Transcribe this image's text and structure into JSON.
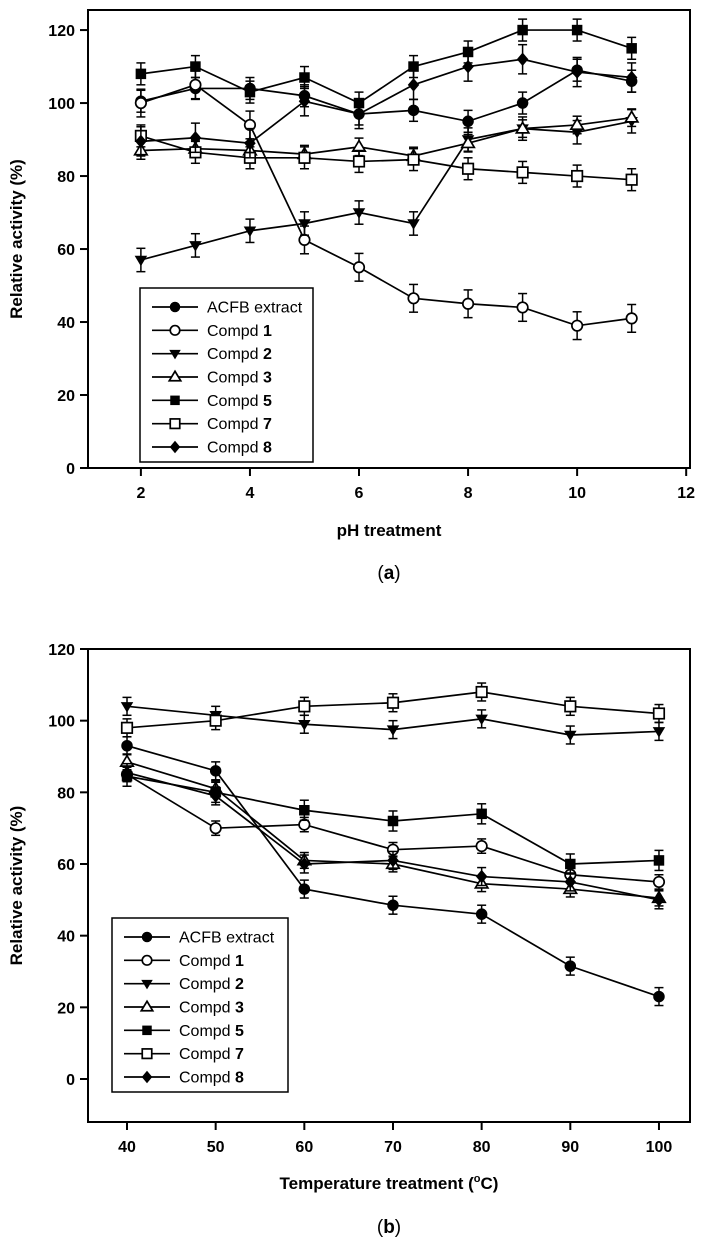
{
  "figure": {
    "background": "#ffffff",
    "ink": "#000000",
    "description_a": "(a)",
    "description_b": "(b)"
  },
  "chart_data": [
    {
      "id": "a",
      "type": "line",
      "title": "",
      "xlabel": "pH treatment",
      "xlabel_parts": [
        {
          "t": "pH treatment",
          "b": true
        }
      ],
      "ylabel": "Relative activity (%)",
      "ylabel_parts": [
        {
          "t": "Relative activity (%)",
          "b": true
        }
      ],
      "panel_label": "(a)",
      "panel_parts": [
        {
          "t": "("
        },
        {
          "t": "a",
          "b": true
        },
        {
          "t": ")"
        }
      ],
      "x": [
        2,
        3,
        4,
        5,
        6,
        7,
        8,
        9,
        10,
        11
      ],
      "xticks": [
        2,
        4,
        6,
        8,
        10,
        12
      ],
      "yticks": [
        0,
        20,
        40,
        60,
        80,
        100,
        120
      ],
      "xlim": [
        1.03,
        12.07
      ],
      "ylim": [
        0,
        125.5
      ],
      "grid": false,
      "legend_position": "lower-left",
      "series": [
        {
          "name": "ACFB extract",
          "label_parts": [
            {
              "t": "ACFB extract"
            }
          ],
          "marker": "filled-circle",
          "err": 3,
          "values": [
            100.5,
            104,
            104,
            102,
            97,
            98,
            95,
            100,
            109,
            106
          ]
        },
        {
          "name": "Compd 1",
          "label_parts": [
            {
              "t": "Compd "
            },
            {
              "t": "1",
              "b": true
            }
          ],
          "marker": "open-circle",
          "err": 3.8,
          "values": [
            100,
            105,
            94,
            62.5,
            55,
            46.5,
            45,
            44,
            39,
            41
          ]
        },
        {
          "name": "Compd 2",
          "label_parts": [
            {
              "t": "Compd "
            },
            {
              "t": "2",
              "b": true
            }
          ],
          "marker": "filled-triangle-down",
          "err": 3.2,
          "values": [
            57,
            61,
            65,
            67,
            70,
            67,
            90,
            93,
            92,
            95
          ]
        },
        {
          "name": "Compd 3",
          "label_parts": [
            {
              "t": "Compd "
            },
            {
              "t": "3",
              "b": true
            }
          ],
          "marker": "open-triangle-up",
          "err": 2.4,
          "values": [
            87,
            87.5,
            87,
            86,
            88,
            85.5,
            89,
            93,
            94,
            96
          ]
        },
        {
          "name": "Compd 5",
          "label_parts": [
            {
              "t": "Compd "
            },
            {
              "t": "5",
              "b": true
            }
          ],
          "marker": "filled-square",
          "err": 3,
          "values": [
            108,
            110,
            103,
            107,
            100,
            110,
            114,
            120,
            120,
            115
          ]
        },
        {
          "name": "Compd 7",
          "label_parts": [
            {
              "t": "Compd "
            },
            {
              "t": "7",
              "b": true
            }
          ],
          "marker": "open-square",
          "err": 3,
          "values": [
            91,
            86.5,
            85,
            85,
            84,
            84.5,
            82,
            81,
            80,
            79
          ]
        },
        {
          "name": "Compd 8",
          "label_parts": [
            {
              "t": "Compd "
            },
            {
              "t": "8",
              "b": true
            }
          ],
          "marker": "filled-diamond",
          "err": 4,
          "values": [
            89.5,
            90.5,
            89,
            100.5,
            97,
            105,
            110,
            112,
            108.5,
            107
          ]
        }
      ]
    },
    {
      "id": "b",
      "type": "line",
      "title": "",
      "xlabel": "Temperature treatment (°C)",
      "xlabel_parts": [
        {
          "t": "Temperature treatment (",
          "b": true
        },
        {
          "t": "o",
          "b": true,
          "sup": true
        },
        {
          "t": "C)",
          "b": true
        }
      ],
      "ylabel": "Relative activity (%)",
      "ylabel_parts": [
        {
          "t": "Relative activity (%)",
          "b": true
        }
      ],
      "panel_label": "(b)",
      "panel_parts": [
        {
          "t": "("
        },
        {
          "t": "b",
          "b": true
        },
        {
          "t": ")"
        }
      ],
      "x": [
        40,
        50,
        60,
        70,
        80,
        90,
        100
      ],
      "xticks": [
        40,
        50,
        60,
        70,
        80,
        90,
        100
      ],
      "yticks": [
        0,
        20,
        40,
        60,
        80,
        100,
        120
      ],
      "xlim": [
        35.6,
        103.5
      ],
      "ylim": [
        -12,
        120
      ],
      "grid": false,
      "legend_position": "lower-left",
      "series": [
        {
          "name": "ACFB extract",
          "label_parts": [
            {
              "t": "ACFB extract"
            }
          ],
          "marker": "filled-circle",
          "err": 2.5,
          "values": [
            93,
            86,
            53,
            48.5,
            46,
            31.5,
            23
          ]
        },
        {
          "name": "Compd 1",
          "label_parts": [
            {
              "t": "Compd "
            },
            {
              "t": "1",
              "b": true
            }
          ],
          "marker": "open-circle",
          "err": 2,
          "values": [
            85,
            70,
            71,
            64,
            65,
            57,
            55
          ]
        },
        {
          "name": "Compd 2",
          "label_parts": [
            {
              "t": "Compd "
            },
            {
              "t": "2",
              "b": true
            }
          ],
          "marker": "filled-triangle-down",
          "err": 2.5,
          "values": [
            104,
            101.5,
            99,
            97.5,
            100.5,
            96,
            97
          ]
        },
        {
          "name": "Compd 3",
          "label_parts": [
            {
              "t": "Compd "
            },
            {
              "t": "3",
              "b": true
            }
          ],
          "marker": "open-triangle-up",
          "err": 2.2,
          "values": [
            88.5,
            81,
            61,
            60,
            54.5,
            53,
            50.5
          ]
        },
        {
          "name": "Compd 5",
          "label_parts": [
            {
              "t": "Compd "
            },
            {
              "t": "5",
              "b": true
            }
          ],
          "marker": "filled-square",
          "err": 2.8,
          "values": [
            84.5,
            80,
            75,
            72,
            74,
            60,
            61
          ]
        },
        {
          "name": "Compd 7",
          "label_parts": [
            {
              "t": "Compd "
            },
            {
              "t": "7",
              "b": true
            }
          ],
          "marker": "open-square",
          "err": 2.5,
          "values": [
            98,
            100,
            104,
            105,
            108,
            104,
            102
          ]
        },
        {
          "name": "Compd 8",
          "label_parts": [
            {
              "t": "Compd "
            },
            {
              "t": "8",
              "b": true
            }
          ],
          "marker": "filled-diamond",
          "err": 2.5,
          "values": [
            85.5,
            79,
            60,
            61,
            56.5,
            55,
            50
          ]
        }
      ]
    }
  ]
}
